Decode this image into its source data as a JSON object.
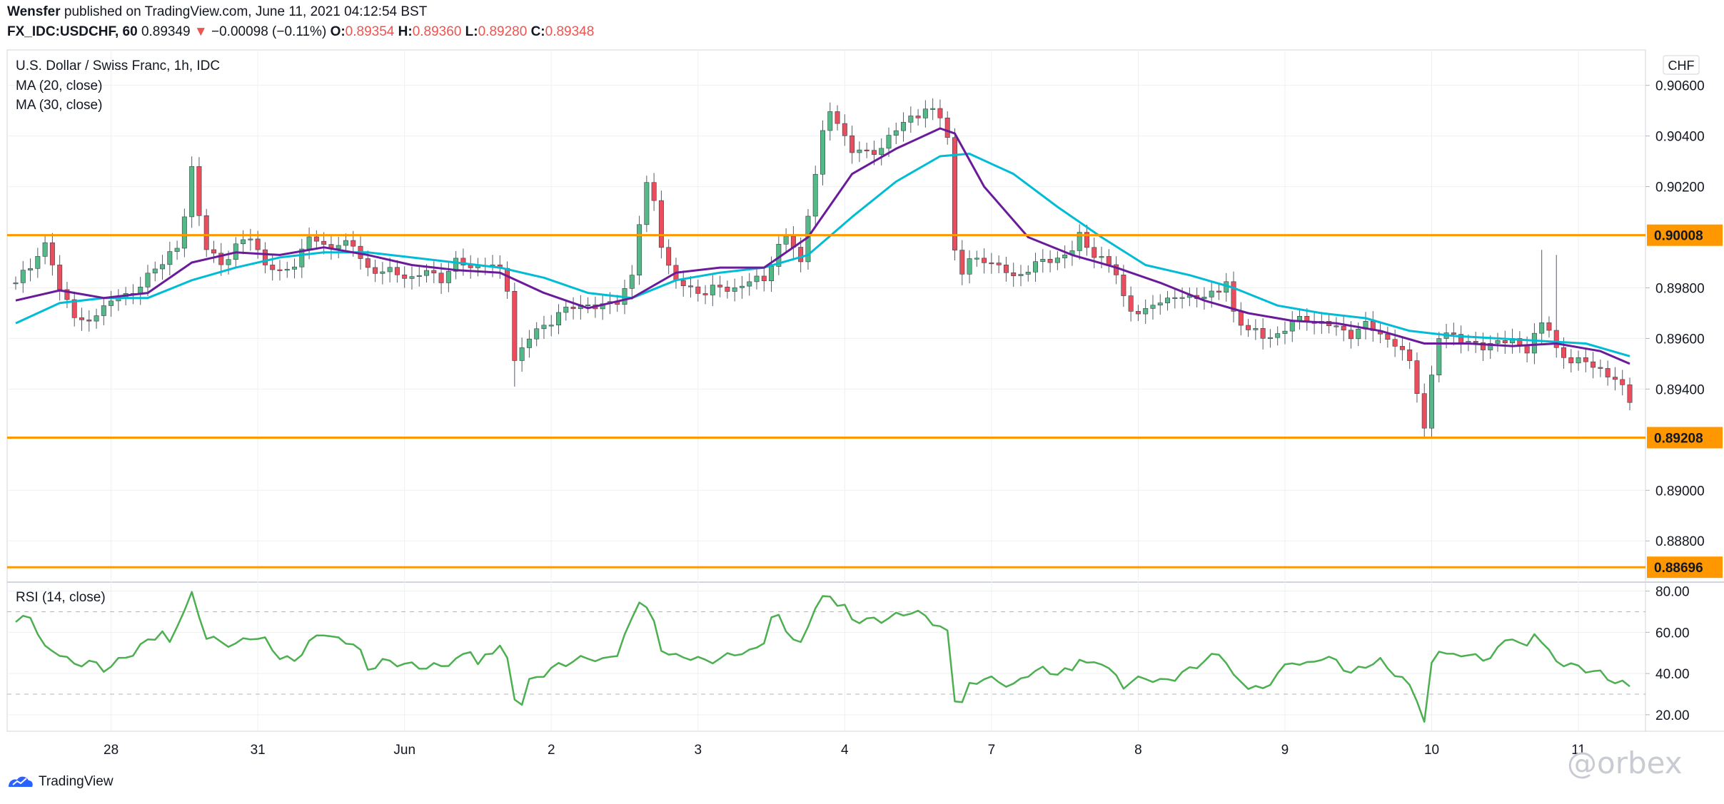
{
  "header": {
    "publisher": "Wensfer",
    "published_text": "published on TradingView.com, June 11, 2021 04:12:54 BST",
    "symbol": "FX_IDC:USDCHF, 60",
    "last": "0.89349",
    "change_arrow": "▼",
    "change": "−0.00098 (−0.11%)",
    "o_label": "O:",
    "o_value": "0.89354",
    "h_label": "H:",
    "h_value": "0.89360",
    "l_label": "L:",
    "l_value": "0.89280",
    "c_label": "C:",
    "c_value": "0.89348"
  },
  "legend": {
    "instrument": "U.S. Dollar / Swiss Franc, 1h, IDC",
    "ma20": "MA (20, close)",
    "ma30": "MA (30, close)",
    "rsi": "RSI (14, close)"
  },
  "footer": {
    "brand": "TradingView",
    "watermark": "@orbex"
  },
  "colors": {
    "up": "#53b987",
    "down": "#eb4d5c",
    "ma20": "#6a1b9a",
    "ma30": "#00bcd4",
    "rsi": "#4caf50",
    "level": "#ff9800",
    "grid": "#eef0f3"
  },
  "chart_data": [
    {
      "type": "candlestick",
      "currency_label": "CHF",
      "y_ticks": [
        0.906,
        0.904,
        0.902,
        0.898,
        0.896,
        0.894,
        0.89,
        0.888
      ],
      "y_tick_labels": [
        "0.90600",
        "0.90400",
        "0.90200",
        "0.89800",
        "0.89600",
        "0.89400",
        "0.89000",
        "0.88800"
      ],
      "ylim": [
        0.8864,
        0.9074
      ],
      "x_ticks": [
        "28",
        "31",
        "Jun",
        "2",
        "3",
        "4",
        "7",
        "8",
        "9",
        "10",
        "11"
      ],
      "levels": [
        {
          "value": 0.90008,
          "label": "0.90008"
        },
        {
          "value": 0.89208,
          "label": "0.89208"
        },
        {
          "value": 0.88696,
          "label": "0.88696"
        }
      ],
      "close_path": [
        [
          0,
          0.8982
        ],
        [
          2,
          0.8988
        ],
        [
          4,
          0.8998
        ],
        [
          5,
          0.899
        ],
        [
          6,
          0.8978
        ],
        [
          8,
          0.897
        ],
        [
          10,
          0.8966
        ],
        [
          12,
          0.8972
        ],
        [
          14,
          0.8978
        ],
        [
          16,
          0.8976
        ],
        [
          18,
          0.8986
        ],
        [
          20,
          0.899
        ],
        [
          22,
          0.8995
        ],
        [
          23,
          0.901
        ],
        [
          24,
          0.9028
        ],
        [
          25,
          0.9008
        ],
        [
          26,
          0.8995
        ],
        [
          28,
          0.899
        ],
        [
          30,
          0.8996
        ],
        [
          32,
          0.9
        ],
        [
          34,
          0.899
        ],
        [
          36,
          0.8985
        ],
        [
          38,
          0.899
        ],
        [
          40,
          0.9
        ],
        [
          42,
          0.8996
        ],
        [
          44,
          0.8998
        ],
        [
          46,
          0.8996
        ],
        [
          48,
          0.8988
        ],
        [
          50,
          0.8986
        ],
        [
          52,
          0.8986
        ],
        [
          54,
          0.8984
        ],
        [
          56,
          0.8986
        ],
        [
          58,
          0.8984
        ],
        [
          60,
          0.899
        ],
        [
          62,
          0.8988
        ],
        [
          64,
          0.899
        ],
        [
          66,
          0.8986
        ],
        [
          67,
          0.898
        ],
        [
          68,
          0.8952
        ],
        [
          70,
          0.896
        ],
        [
          72,
          0.8965
        ],
        [
          74,
          0.897
        ],
        [
          76,
          0.8972
        ],
        [
          78,
          0.8974
        ],
        [
          80,
          0.8972
        ],
        [
          82,
          0.8975
        ],
        [
          84,
          0.8985
        ],
        [
          85,
          0.9005
        ],
        [
          86,
          0.902
        ],
        [
          87,
          0.9015
        ],
        [
          88,
          0.8998
        ],
        [
          89,
          0.8988
        ],
        [
          90,
          0.8982
        ],
        [
          92,
          0.898
        ],
        [
          94,
          0.8978
        ],
        [
          96,
          0.898
        ],
        [
          98,
          0.898
        ],
        [
          100,
          0.8982
        ],
        [
          102,
          0.8984
        ],
        [
          104,
          0.8996
        ],
        [
          105,
          0.9
        ],
        [
          106,
          0.8996
        ],
        [
          107,
          0.899
        ],
        [
          108,
          0.901
        ],
        [
          109,
          0.9025
        ],
        [
          110,
          0.904
        ],
        [
          111,
          0.905
        ],
        [
          112,
          0.9046
        ],
        [
          113,
          0.904
        ],
        [
          114,
          0.9034
        ],
        [
          116,
          0.9033
        ],
        [
          118,
          0.9036
        ],
        [
          120,
          0.9042
        ],
        [
          122,
          0.9048
        ],
        [
          124,
          0.905
        ],
        [
          126,
          0.9048
        ],
        [
          127,
          0.904
        ],
        [
          128,
          0.8995
        ],
        [
          129,
          0.8986
        ],
        [
          130,
          0.899
        ],
        [
          132,
          0.8992
        ],
        [
          134,
          0.8988
        ],
        [
          136,
          0.8984
        ],
        [
          138,
          0.8988
        ],
        [
          140,
          0.899
        ],
        [
          142,
          0.8992
        ],
        [
          144,
          0.8995
        ],
        [
          145,
          0.9
        ],
        [
          146,
          0.8996
        ],
        [
          148,
          0.8992
        ],
        [
          150,
          0.8985
        ],
        [
          151,
          0.8976
        ],
        [
          152,
          0.8972
        ],
        [
          154,
          0.897
        ],
        [
          156,
          0.8975
        ],
        [
          158,
          0.8977
        ],
        [
          160,
          0.8975
        ],
        [
          162,
          0.8978
        ],
        [
          164,
          0.8978
        ],
        [
          165,
          0.8982
        ],
        [
          166,
          0.897
        ],
        [
          168,
          0.8964
        ],
        [
          170,
          0.896
        ],
        [
          172,
          0.8962
        ],
        [
          174,
          0.8966
        ],
        [
          176,
          0.8968
        ],
        [
          178,
          0.8966
        ],
        [
          180,
          0.8964
        ],
        [
          182,
          0.8962
        ],
        [
          184,
          0.8965
        ],
        [
          186,
          0.8962
        ],
        [
          188,
          0.8958
        ],
        [
          190,
          0.895
        ],
        [
          191,
          0.894
        ],
        [
          192,
          0.8925
        ],
        [
          193,
          0.8945
        ],
        [
          194,
          0.896
        ],
        [
          196,
          0.8962
        ],
        [
          198,
          0.8958
        ],
        [
          200,
          0.8956
        ],
        [
          202,
          0.896
        ],
        [
          204,
          0.8958
        ],
        [
          206,
          0.8956
        ],
        [
          207,
          0.8962
        ],
        [
          208,
          0.8966
        ],
        [
          209,
          0.8963
        ],
        [
          210,
          0.8955
        ],
        [
          212,
          0.8952
        ],
        [
          214,
          0.895
        ],
        [
          216,
          0.8948
        ],
        [
          218,
          0.8944
        ],
        [
          220,
          0.8935
        ]
      ],
      "ma20_path": [
        [
          0,
          0.8975
        ],
        [
          6,
          0.8979
        ],
        [
          12,
          0.8976
        ],
        [
          18,
          0.8978
        ],
        [
          24,
          0.899
        ],
        [
          30,
          0.8994
        ],
        [
          36,
          0.8993
        ],
        [
          42,
          0.8996
        ],
        [
          48,
          0.8993
        ],
        [
          54,
          0.8989
        ],
        [
          60,
          0.8987
        ],
        [
          66,
          0.8986
        ],
        [
          72,
          0.8978
        ],
        [
          78,
          0.8972
        ],
        [
          84,
          0.8976
        ],
        [
          90,
          0.8986
        ],
        [
          96,
          0.8988
        ],
        [
          102,
          0.8988
        ],
        [
          108,
          0.9
        ],
        [
          114,
          0.9025
        ],
        [
          120,
          0.9035
        ],
        [
          126,
          0.9043
        ],
        [
          128,
          0.9041
        ],
        [
          132,
          0.902
        ],
        [
          138,
          0.9
        ],
        [
          144,
          0.8993
        ],
        [
          150,
          0.8988
        ],
        [
          156,
          0.8982
        ],
        [
          162,
          0.8975
        ],
        [
          168,
          0.897
        ],
        [
          174,
          0.8967
        ],
        [
          180,
          0.8966
        ],
        [
          186,
          0.8963
        ],
        [
          192,
          0.8958
        ],
        [
          198,
          0.8958
        ],
        [
          204,
          0.8957
        ],
        [
          210,
          0.8958
        ],
        [
          216,
          0.8955
        ],
        [
          220,
          0.895
        ]
      ],
      "ma30_path": [
        [
          0,
          0.8966
        ],
        [
          6,
          0.8974
        ],
        [
          12,
          0.8976
        ],
        [
          18,
          0.8976
        ],
        [
          24,
          0.8983
        ],
        [
          30,
          0.8988
        ],
        [
          36,
          0.8992
        ],
        [
          42,
          0.8994
        ],
        [
          48,
          0.8994
        ],
        [
          54,
          0.8992
        ],
        [
          60,
          0.899
        ],
        [
          66,
          0.8988
        ],
        [
          72,
          0.8984
        ],
        [
          78,
          0.8978
        ],
        [
          84,
          0.8976
        ],
        [
          90,
          0.8983
        ],
        [
          96,
          0.8986
        ],
        [
          102,
          0.8988
        ],
        [
          108,
          0.8993
        ],
        [
          114,
          0.9008
        ],
        [
          120,
          0.9022
        ],
        [
          126,
          0.9032
        ],
        [
          130,
          0.9033
        ],
        [
          136,
          0.9025
        ],
        [
          142,
          0.9012
        ],
        [
          148,
          0.9
        ],
        [
          154,
          0.8989
        ],
        [
          160,
          0.8985
        ],
        [
          166,
          0.898
        ],
        [
          172,
          0.8973
        ],
        [
          178,
          0.897
        ],
        [
          184,
          0.8968
        ],
        [
          190,
          0.8963
        ],
        [
          196,
          0.8961
        ],
        [
          202,
          0.896
        ],
        [
          208,
          0.8959
        ],
        [
          214,
          0.8958
        ],
        [
          220,
          0.8953
        ]
      ]
    },
    {
      "type": "line",
      "title": "RSI (14, close)",
      "y_ticks": [
        80,
        60,
        40,
        20
      ],
      "y_tick_labels": [
        "80.00",
        "60.00",
        "40.00",
        "20.00"
      ],
      "ylim": [
        12,
        84
      ],
      "bands": [
        70,
        30
      ],
      "values": [
        [
          0,
          65
        ],
        [
          2,
          68
        ],
        [
          4,
          52
        ],
        [
          6,
          50
        ],
        [
          8,
          44
        ],
        [
          10,
          46
        ],
        [
          12,
          42
        ],
        [
          14,
          46
        ],
        [
          16,
          50
        ],
        [
          18,
          56
        ],
        [
          20,
          60
        ],
        [
          21,
          54
        ],
        [
          22,
          64
        ],
        [
          24,
          78
        ],
        [
          25,
          68
        ],
        [
          26,
          58
        ],
        [
          28,
          55
        ],
        [
          30,
          54
        ],
        [
          32,
          58
        ],
        [
          34,
          56
        ],
        [
          36,
          48
        ],
        [
          38,
          46
        ],
        [
          40,
          55
        ],
        [
          42,
          60
        ],
        [
          44,
          56
        ],
        [
          46,
          55
        ],
        [
          47,
          50
        ],
        [
          48,
          42
        ],
        [
          50,
          46
        ],
        [
          52,
          45
        ],
        [
          54,
          44
        ],
        [
          56,
          43
        ],
        [
          58,
          44
        ],
        [
          60,
          46
        ],
        [
          62,
          52
        ],
        [
          63,
          44
        ],
        [
          64,
          48
        ],
        [
          66,
          54
        ],
        [
          67,
          46
        ],
        [
          68,
          28
        ],
        [
          69,
          26
        ],
        [
          70,
          36
        ],
        [
          72,
          40
        ],
        [
          74,
          44
        ],
        [
          76,
          46
        ],
        [
          78,
          48
        ],
        [
          80,
          46
        ],
        [
          82,
          50
        ],
        [
          84,
          66
        ],
        [
          85,
          76
        ],
        [
          86,
          72
        ],
        [
          87,
          64
        ],
        [
          88,
          52
        ],
        [
          90,
          48
        ],
        [
          92,
          48
        ],
        [
          94,
          46
        ],
        [
          96,
          47
        ],
        [
          98,
          50
        ],
        [
          100,
          50
        ],
        [
          102,
          56
        ],
        [
          103,
          66
        ],
        [
          104,
          68
        ],
        [
          105,
          62
        ],
        [
          106,
          56
        ],
        [
          107,
          54
        ],
        [
          108,
          64
        ],
        [
          109,
          72
        ],
        [
          110,
          76
        ],
        [
          111,
          78
        ],
        [
          112,
          74
        ],
        [
          113,
          72
        ],
        [
          114,
          66
        ],
        [
          116,
          66
        ],
        [
          118,
          66
        ],
        [
          120,
          68
        ],
        [
          122,
          70
        ],
        [
          124,
          68
        ],
        [
          126,
          62
        ],
        [
          127,
          60
        ],
        [
          128,
          28
        ],
        [
          129,
          26
        ],
        [
          130,
          34
        ],
        [
          132,
          38
        ],
        [
          134,
          36
        ],
        [
          136,
          34
        ],
        [
          138,
          40
        ],
        [
          140,
          42
        ],
        [
          142,
          40
        ],
        [
          144,
          42
        ],
        [
          145,
          48
        ],
        [
          146,
          44
        ],
        [
          148,
          46
        ],
        [
          150,
          38
        ],
        [
          151,
          34
        ],
        [
          152,
          36
        ],
        [
          154,
          38
        ],
        [
          156,
          36
        ],
        [
          158,
          38
        ],
        [
          160,
          42
        ],
        [
          162,
          46
        ],
        [
          164,
          50
        ],
        [
          165,
          46
        ],
        [
          166,
          38
        ],
        [
          168,
          34
        ],
        [
          170,
          32
        ],
        [
          172,
          40
        ],
        [
          174,
          46
        ],
        [
          176,
          44
        ],
        [
          178,
          48
        ],
        [
          180,
          46
        ],
        [
          182,
          40
        ],
        [
          184,
          44
        ],
        [
          186,
          46
        ],
        [
          188,
          40
        ],
        [
          190,
          34
        ],
        [
          191,
          28
        ],
        [
          192,
          16
        ],
        [
          193,
          44
        ],
        [
          194,
          52
        ],
        [
          196,
          48
        ],
        [
          198,
          50
        ],
        [
          200,
          46
        ],
        [
          202,
          52
        ],
        [
          204,
          58
        ],
        [
          206,
          52
        ],
        [
          207,
          60
        ],
        [
          208,
          56
        ],
        [
          209,
          50
        ],
        [
          210,
          46
        ],
        [
          212,
          44
        ],
        [
          214,
          42
        ],
        [
          216,
          40
        ],
        [
          218,
          36
        ],
        [
          220,
          34
        ]
      ]
    }
  ]
}
